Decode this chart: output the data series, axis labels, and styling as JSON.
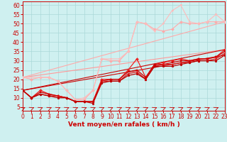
{
  "bg_color": "#cff0f0",
  "grid_color": "#aad8d8",
  "xlabel": "Vent moyen/en rafales ( km/h )",
  "ylabel_ticks": [
    5,
    10,
    15,
    20,
    25,
    30,
    35,
    40,
    45,
    50,
    55,
    60
  ],
  "x_ticks": [
    0,
    1,
    2,
    3,
    4,
    5,
    6,
    7,
    8,
    9,
    10,
    11,
    12,
    13,
    14,
    15,
    16,
    17,
    18,
    19,
    20,
    21,
    22,
    23
  ],
  "xlim": [
    0,
    23
  ],
  "ylim": [
    3,
    62
  ],
  "series": [
    {
      "color": "#ffaaaa",
      "lw": 0.8,
      "marker": "D",
      "markersize": 2.0,
      "x": [
        0,
        1,
        2,
        3,
        4,
        5,
        6,
        7,
        8,
        9,
        10,
        11,
        12,
        13,
        14,
        15,
        16,
        17,
        18,
        19,
        20,
        21,
        22,
        23
      ],
      "y": [
        21,
        20,
        21,
        21,
        19,
        14,
        9,
        9,
        14,
        31,
        30,
        30,
        35,
        51,
        50,
        47,
        46,
        47,
        51,
        50,
        50,
        51,
        51,
        51
      ]
    },
    {
      "color": "#ffbbbb",
      "lw": 0.8,
      "marker": "v",
      "markersize": 2.0,
      "x": [
        0,
        2,
        3,
        4,
        5,
        6,
        7,
        8,
        9,
        10,
        11,
        12,
        13,
        14,
        15,
        16,
        17,
        18,
        19,
        20,
        21,
        22,
        23
      ],
      "y": [
        21,
        21,
        21,
        19,
        14,
        9,
        10,
        14,
        31,
        31,
        31,
        35,
        51,
        50,
        46,
        50,
        57,
        60,
        51,
        50,
        51,
        55,
        51
      ]
    },
    {
      "color": "#ff9999",
      "lw": 0.8,
      "marker": null,
      "markersize": 0,
      "x": [
        0,
        23
      ],
      "y": [
        21,
        36
      ]
    },
    {
      "color": "#ffaaaa",
      "lw": 0.8,
      "marker": null,
      "markersize": 0,
      "x": [
        0,
        23
      ],
      "y": [
        21,
        51
      ]
    },
    {
      "color": "#ee2222",
      "lw": 0.9,
      "marker": "D",
      "markersize": 2.0,
      "x": [
        0,
        1,
        2,
        3,
        4,
        5,
        6,
        7,
        8,
        9,
        10,
        11,
        12,
        13,
        14,
        15,
        16,
        17,
        18,
        19,
        20,
        21,
        22,
        23
      ],
      "y": [
        14,
        10,
        14,
        12,
        11,
        10,
        8,
        8,
        8,
        20,
        20,
        20,
        25,
        31,
        21,
        28,
        29,
        30,
        31,
        30,
        31,
        31,
        32,
        36
      ]
    },
    {
      "color": "#cc0000",
      "lw": 0.9,
      "marker": "s",
      "markersize": 2.0,
      "x": [
        0,
        1,
        2,
        3,
        4,
        5,
        6,
        7,
        8,
        9,
        10,
        11,
        12,
        13,
        14,
        15,
        16,
        17,
        18,
        19,
        20,
        21,
        22,
        23
      ],
      "y": [
        14,
        10,
        13,
        12,
        11,
        10,
        8,
        8,
        8,
        19,
        20,
        20,
        24,
        25,
        21,
        28,
        28,
        29,
        30,
        30,
        31,
        31,
        32,
        35
      ]
    },
    {
      "color": "#dd1111",
      "lw": 0.9,
      "marker": "^",
      "markersize": 2.0,
      "x": [
        0,
        1,
        2,
        3,
        4,
        5,
        6,
        7,
        8,
        9,
        10,
        11,
        12,
        13,
        14,
        15,
        16,
        17,
        18,
        19,
        20,
        21,
        22,
        23
      ],
      "y": [
        14,
        10,
        12,
        11,
        11,
        10,
        8,
        8,
        8,
        19,
        19,
        19,
        23,
        24,
        20,
        27,
        28,
        28,
        29,
        29,
        30,
        30,
        31,
        34
      ]
    },
    {
      "color": "#bb0000",
      "lw": 0.9,
      "marker": "o",
      "markersize": 2.0,
      "x": [
        0,
        1,
        2,
        3,
        4,
        5,
        6,
        7,
        8,
        9,
        10,
        11,
        12,
        13,
        14,
        15,
        16,
        17,
        18,
        19,
        20,
        21,
        22,
        23
      ],
      "y": [
        14,
        10,
        12,
        11,
        10,
        10,
        8,
        8,
        7,
        18,
        19,
        19,
        22,
        23,
        20,
        27,
        27,
        27,
        28,
        29,
        30,
        30,
        30,
        33
      ]
    },
    {
      "color": "#cc0000",
      "lw": 0.8,
      "marker": null,
      "markersize": 0,
      "x": [
        0,
        23
      ],
      "y": [
        14,
        36
      ]
    },
    {
      "color": "#cc0000",
      "lw": 0.8,
      "marker": null,
      "markersize": 0,
      "x": [
        0,
        23
      ],
      "y": [
        14,
        33
      ]
    }
  ],
  "axis_color": "#cc0000",
  "tick_color": "#cc0000",
  "xlabel_color": "#cc0000",
  "xlabel_fontsize": 6.5,
  "tick_fontsize": 5.5,
  "arrow_color": "#cc0000"
}
